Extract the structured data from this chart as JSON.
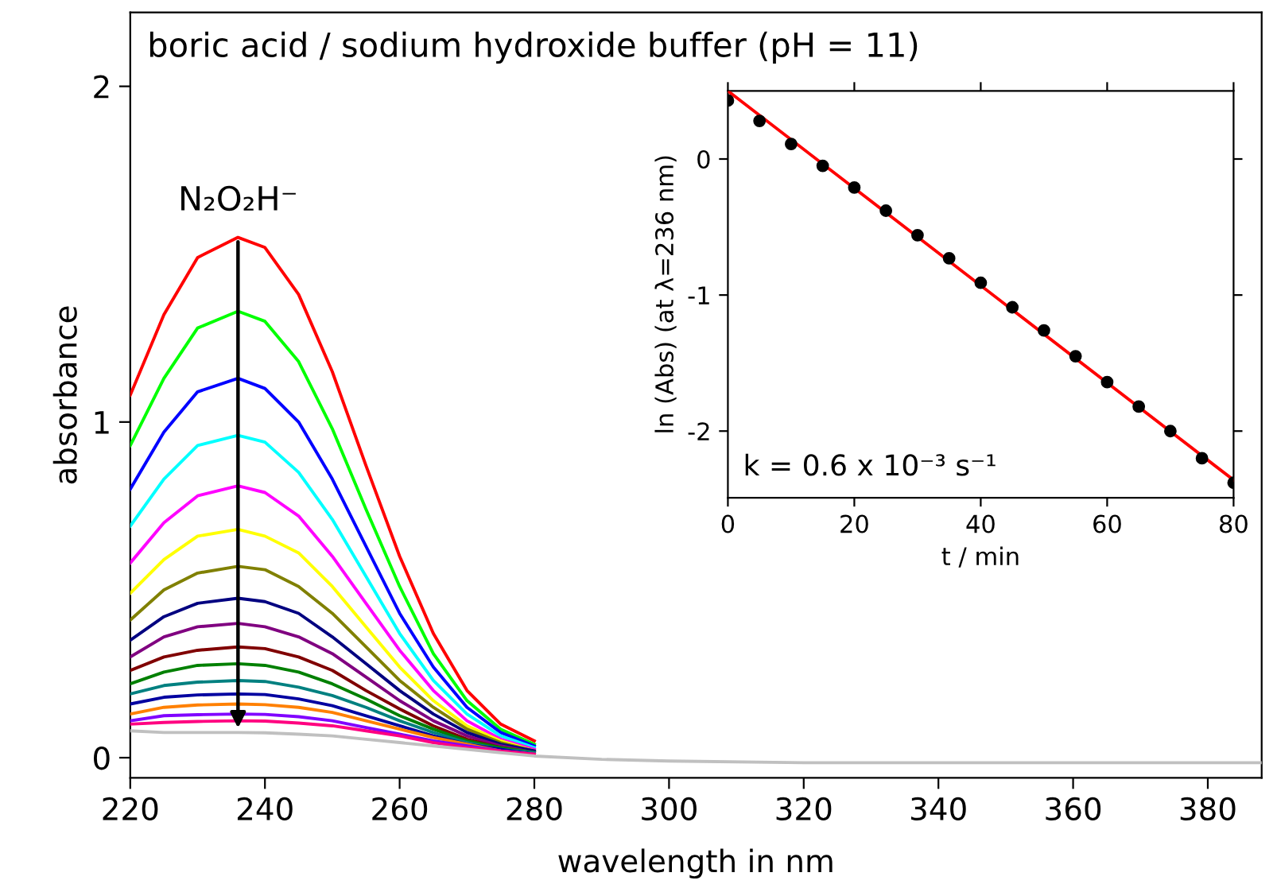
{
  "chart_data": [
    {
      "type": "line",
      "title": "boric acid / sodium hydroxide buffer (pH = 11)",
      "xlabel": "wavelength in nm",
      "ylabel": "absorbance",
      "x": [
        220,
        225,
        230,
        236,
        240,
        245,
        250,
        255,
        260,
        265,
        270,
        275,
        280,
        290,
        300,
        320,
        350,
        388
      ],
      "xlim": [
        220,
        388
      ],
      "xticks": [
        220,
        240,
        260,
        280,
        300,
        320,
        340,
        360,
        380
      ],
      "ylim": [
        -0.06,
        2.22
      ],
      "yticks": [
        0,
        1,
        2
      ],
      "grid": false,
      "legend": false,
      "annotations": [
        {
          "text": "N₂O₂H⁻",
          "x": 236,
          "y": 1.55
        }
      ],
      "series": [
        {
          "color": "#ff0000",
          "x": [
            220,
            225,
            230,
            236,
            240,
            245,
            250,
            255,
            260,
            265,
            270,
            275,
            280
          ],
          "values": [
            1.08,
            1.32,
            1.49,
            1.55,
            1.52,
            1.38,
            1.15,
            0.87,
            0.6,
            0.37,
            0.2,
            0.1,
            0.05
          ]
        },
        {
          "color": "#00ff00",
          "x": [
            220,
            225,
            230,
            236,
            240,
            245,
            250,
            255,
            260,
            265,
            270,
            275,
            280
          ],
          "values": [
            0.93,
            1.13,
            1.28,
            1.33,
            1.3,
            1.18,
            0.98,
            0.74,
            0.51,
            0.31,
            0.17,
            0.085,
            0.04
          ]
        },
        {
          "color": "#0000ff",
          "x": [
            220,
            225,
            230,
            236,
            240,
            245,
            250,
            255,
            260,
            265,
            270,
            275,
            280
          ],
          "values": [
            0.8,
            0.97,
            1.09,
            1.13,
            1.1,
            1.0,
            0.83,
            0.63,
            0.43,
            0.27,
            0.15,
            0.075,
            0.035
          ]
        },
        {
          "color": "#00ffff",
          "x": [
            220,
            225,
            230,
            236,
            240,
            245,
            250,
            255,
            260,
            265,
            270,
            275,
            280
          ],
          "values": [
            0.69,
            0.83,
            0.93,
            0.96,
            0.94,
            0.85,
            0.71,
            0.54,
            0.37,
            0.23,
            0.13,
            0.065,
            0.03
          ]
        },
        {
          "color": "#ff00ff",
          "x": [
            220,
            225,
            230,
            236,
            240,
            245,
            250,
            255,
            260,
            265,
            270,
            275,
            280
          ],
          "values": [
            0.58,
            0.7,
            0.78,
            0.81,
            0.79,
            0.72,
            0.6,
            0.46,
            0.32,
            0.2,
            0.11,
            0.055,
            0.025
          ]
        },
        {
          "color": "#ffff00",
          "x": [
            220,
            225,
            230,
            236,
            240,
            245,
            250,
            255,
            260,
            265,
            270,
            275,
            280
          ],
          "values": [
            0.49,
            0.59,
            0.66,
            0.68,
            0.66,
            0.61,
            0.51,
            0.39,
            0.27,
            0.17,
            0.095,
            0.05,
            0.02
          ]
        },
        {
          "color": "#808000",
          "x": [
            220,
            225,
            230,
            236,
            240,
            245,
            250,
            255,
            260,
            265,
            270,
            275,
            280
          ],
          "values": [
            0.41,
            0.5,
            0.55,
            0.57,
            0.56,
            0.51,
            0.43,
            0.33,
            0.23,
            0.15,
            0.085,
            0.045,
            0.02
          ]
        },
        {
          "color": "#000080",
          "x": [
            220,
            225,
            230,
            236,
            240,
            245,
            250,
            255,
            260,
            265,
            270,
            275,
            280
          ],
          "values": [
            0.35,
            0.42,
            0.46,
            0.475,
            0.465,
            0.43,
            0.36,
            0.28,
            0.2,
            0.13,
            0.075,
            0.04,
            0.02
          ]
        },
        {
          "color": "#800080",
          "x": [
            220,
            225,
            230,
            236,
            240,
            245,
            250,
            255,
            260,
            265,
            270,
            275,
            280
          ],
          "values": [
            0.3,
            0.36,
            0.39,
            0.4,
            0.39,
            0.36,
            0.31,
            0.24,
            0.17,
            0.11,
            0.065,
            0.035,
            0.015
          ]
        },
        {
          "color": "#800000",
          "x": [
            220,
            225,
            230,
            236,
            240,
            245,
            250,
            255,
            260,
            265,
            270,
            275,
            280
          ],
          "values": [
            0.26,
            0.3,
            0.32,
            0.33,
            0.325,
            0.3,
            0.26,
            0.2,
            0.145,
            0.095,
            0.055,
            0.03,
            0.015
          ]
        },
        {
          "color": "#008000",
          "x": [
            220,
            225,
            230,
            236,
            240,
            245,
            250,
            255,
            260,
            265,
            270,
            275,
            280
          ],
          "values": [
            0.22,
            0.255,
            0.275,
            0.28,
            0.275,
            0.255,
            0.22,
            0.175,
            0.125,
            0.085,
            0.05,
            0.03,
            0.015
          ]
        },
        {
          "color": "#008080",
          "x": [
            220,
            225,
            230,
            236,
            240,
            245,
            250,
            255,
            260,
            265,
            270,
            275,
            280
          ],
          "values": [
            0.19,
            0.215,
            0.225,
            0.23,
            0.227,
            0.21,
            0.185,
            0.15,
            0.11,
            0.075,
            0.045,
            0.025,
            0.015
          ]
        },
        {
          "color": "#0000a0",
          "x": [
            220,
            225,
            230,
            236,
            240,
            245,
            250,
            255,
            260,
            265,
            270,
            275,
            280
          ],
          "values": [
            0.16,
            0.18,
            0.187,
            0.19,
            0.188,
            0.175,
            0.155,
            0.125,
            0.095,
            0.065,
            0.04,
            0.025,
            0.01
          ]
        },
        {
          "color": "#ff8000",
          "x": [
            220,
            225,
            230,
            236,
            240,
            245,
            250,
            255,
            260,
            265,
            270,
            275,
            280
          ],
          "values": [
            0.13,
            0.15,
            0.157,
            0.16,
            0.158,
            0.15,
            0.135,
            0.11,
            0.085,
            0.06,
            0.04,
            0.02,
            0.01
          ]
        },
        {
          "color": "#8000ff",
          "x": [
            220,
            225,
            230,
            236,
            240,
            245,
            250,
            255,
            260,
            265,
            270,
            275,
            280
          ],
          "values": [
            0.11,
            0.125,
            0.128,
            0.13,
            0.129,
            0.122,
            0.11,
            0.09,
            0.07,
            0.05,
            0.035,
            0.02,
            0.01
          ]
        },
        {
          "color": "#ff0080",
          "x": [
            220,
            225,
            230,
            236,
            240,
            245,
            250,
            255,
            260,
            265,
            270,
            275,
            280
          ],
          "values": [
            0.1,
            0.105,
            0.108,
            0.11,
            0.109,
            0.103,
            0.095,
            0.08,
            0.065,
            0.045,
            0.03,
            0.02,
            0.01
          ]
        },
        {
          "color": "#c0c0c0",
          "values": [
            0.08,
            0.075,
            0.075,
            0.075,
            0.074,
            0.07,
            0.065,
            0.055,
            0.045,
            0.035,
            0.025,
            0.015,
            0.005,
            -0.005,
            -0.01,
            -0.015,
            -0.015,
            -0.015
          ]
        }
      ]
    },
    {
      "type": "scatter",
      "xlabel": "t / min",
      "ylabel": "ln (Abs) (at λ=236 nm)",
      "xlim": [
        0,
        80
      ],
      "xticks": [
        0,
        20,
        40,
        60,
        80
      ],
      "ylim": [
        -2.49,
        0.5
      ],
      "yticks": [
        0,
        -1,
        -2
      ],
      "grid": false,
      "legend": false,
      "annotations": [
        "k = 0.6 x 10⁻³ s⁻¹"
      ],
      "series": [
        {
          "color": "#000000",
          "marker": "circle",
          "x": [
            0,
            5,
            10,
            15,
            20,
            25,
            30,
            35,
            40,
            45,
            50,
            55,
            60,
            65,
            70,
            75,
            80
          ],
          "values": [
            0.43,
            0.28,
            0.11,
            -0.05,
            -0.21,
            -0.38,
            -0.56,
            -0.73,
            -0.91,
            -1.09,
            -1.26,
            -1.45,
            -1.64,
            -1.82,
            -2.0,
            -2.2,
            -2.38
          ]
        },
        {
          "type": "line",
          "color": "#ff0000",
          "x": [
            0,
            80
          ],
          "values": [
            0.5,
            -2.36
          ]
        }
      ]
    }
  ]
}
